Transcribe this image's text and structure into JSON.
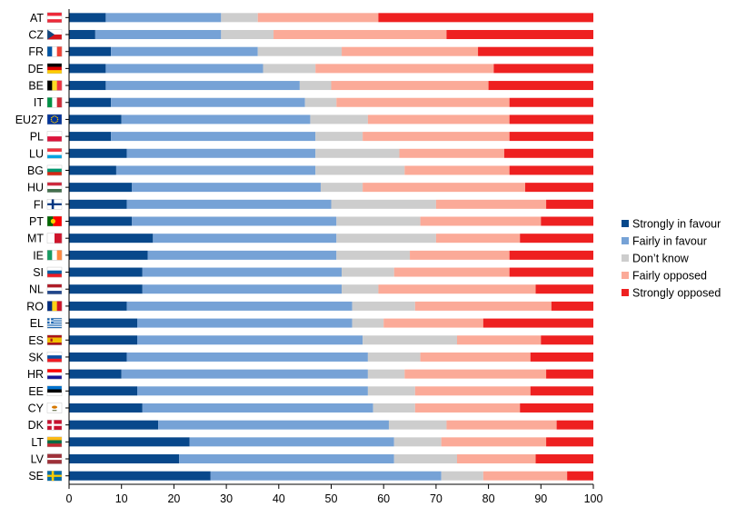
{
  "chart_data": {
    "type": "bar",
    "orientation": "horizontal",
    "stacked": true,
    "title": "",
    "xlabel": "",
    "ylabel": "",
    "xlim": [
      0,
      100
    ],
    "xticks": [
      0,
      10,
      20,
      30,
      40,
      50,
      60,
      70,
      80,
      90,
      100
    ],
    "grid": false,
    "legend_position": "right",
    "categories": [
      "AT",
      "CZ",
      "FR",
      "DE",
      "BE",
      "IT",
      "EU27",
      "PL",
      "LU",
      "BG",
      "HU",
      "FI",
      "PT",
      "MT",
      "IE",
      "SI",
      "NL",
      "RO",
      "EL",
      "ES",
      "SK",
      "HR",
      "EE",
      "CY",
      "DK",
      "LT",
      "LV",
      "SE"
    ],
    "flags": {
      "AT": {
        "type": "h",
        "colors": [
          "#ED2939",
          "#FFFFFF",
          "#ED2939"
        ]
      },
      "CZ": {
        "type": "cz"
      },
      "FR": {
        "type": "v",
        "colors": [
          "#0055A4",
          "#FFFFFF",
          "#EF4135"
        ]
      },
      "DE": {
        "type": "h",
        "colors": [
          "#000000",
          "#DD0000",
          "#FFCE00"
        ]
      },
      "BE": {
        "type": "v",
        "colors": [
          "#000000",
          "#FDDA24",
          "#EF3340"
        ]
      },
      "IT": {
        "type": "v",
        "colors": [
          "#009246",
          "#FFFFFF",
          "#CE2B37"
        ]
      },
      "EU27": {
        "type": "eu"
      },
      "PL": {
        "type": "h",
        "colors": [
          "#FFFFFF",
          "#DC143C"
        ]
      },
      "LU": {
        "type": "h",
        "colors": [
          "#EF3340",
          "#FFFFFF",
          "#00A3E0"
        ]
      },
      "BG": {
        "type": "h",
        "colors": [
          "#FFFFFF",
          "#00966E",
          "#D62612"
        ]
      },
      "HU": {
        "type": "h",
        "colors": [
          "#CD2A3E",
          "#FFFFFF",
          "#436F4D"
        ]
      },
      "FI": {
        "type": "nordic",
        "colors": [
          "#FFFFFF",
          "#003580"
        ]
      },
      "PT": {
        "type": "pt"
      },
      "MT": {
        "type": "v",
        "colors": [
          "#FFFFFF",
          "#CF142B"
        ]
      },
      "IE": {
        "type": "v",
        "colors": [
          "#169B62",
          "#FFFFFF",
          "#FF883E"
        ]
      },
      "SI": {
        "type": "h",
        "colors": [
          "#FFFFFF",
          "#005DA4",
          "#ED1C24"
        ]
      },
      "NL": {
        "type": "h",
        "colors": [
          "#AE1C28",
          "#FFFFFF",
          "#21468B"
        ]
      },
      "RO": {
        "type": "v",
        "colors": [
          "#002B7F",
          "#FCD116",
          "#CE1126"
        ]
      },
      "EL": {
        "type": "gr"
      },
      "ES": {
        "type": "es"
      },
      "SK": {
        "type": "h",
        "colors": [
          "#FFFFFF",
          "#0B4EA2",
          "#EE1C25"
        ]
      },
      "HR": {
        "type": "h",
        "colors": [
          "#FF0000",
          "#FFFFFF",
          "#171796"
        ]
      },
      "EE": {
        "type": "h",
        "colors": [
          "#0072CE",
          "#000000",
          "#FFFFFF"
        ]
      },
      "CY": {
        "type": "cy"
      },
      "DK": {
        "type": "nordic",
        "colors": [
          "#C8102E",
          "#FFFFFF"
        ]
      },
      "LT": {
        "type": "h",
        "colors": [
          "#FDB913",
          "#006A44",
          "#C1272D"
        ]
      },
      "LV": {
        "type": "lv"
      },
      "SE": {
        "type": "nordic",
        "colors": [
          "#006AA7",
          "#FECC00"
        ]
      }
    },
    "series": [
      {
        "name": "Strongly in favour",
        "color": "#08488B",
        "values": [
          7,
          5,
          8,
          7,
          7,
          8,
          10,
          8,
          11,
          9,
          12,
          11,
          12,
          16,
          15,
          14,
          14,
          11,
          13,
          13,
          11,
          10,
          13,
          14,
          17,
          23,
          21,
          27
        ]
      },
      {
        "name": "Fairly in favour",
        "color": "#76A2D6",
        "values": [
          22,
          24,
          28,
          30,
          37,
          37,
          36,
          39,
          36,
          38,
          36,
          39,
          39,
          35,
          36,
          38,
          38,
          43,
          41,
          43,
          46,
          47,
          44,
          44,
          44,
          39,
          41,
          44
        ]
      },
      {
        "name": "Don’t know",
        "color": "#CDCDCD",
        "values": [
          7,
          10,
          16,
          10,
          6,
          6,
          11,
          9,
          16,
          17,
          8,
          20,
          16,
          19,
          14,
          10,
          7,
          12,
          6,
          18,
          10,
          7,
          9,
          8,
          11,
          9,
          12,
          8
        ]
      },
      {
        "name": "Fairly opposed",
        "color": "#FBAA98",
        "values": [
          23,
          33,
          26,
          34,
          30,
          33,
          27,
          28,
          20,
          20,
          31,
          21,
          23,
          16,
          19,
          22,
          30,
          26,
          19,
          16,
          21,
          27,
          22,
          20,
          21,
          20,
          15,
          16
        ]
      },
      {
        "name": "Strongly opposed",
        "color": "#EE2020",
        "values": [
          41,
          28,
          22,
          19,
          20,
          16,
          16,
          16,
          17,
          16,
          13,
          9,
          10,
          14,
          16,
          16,
          11,
          8,
          21,
          10,
          12,
          9,
          12,
          14,
          7,
          9,
          11,
          5
        ]
      }
    ]
  }
}
